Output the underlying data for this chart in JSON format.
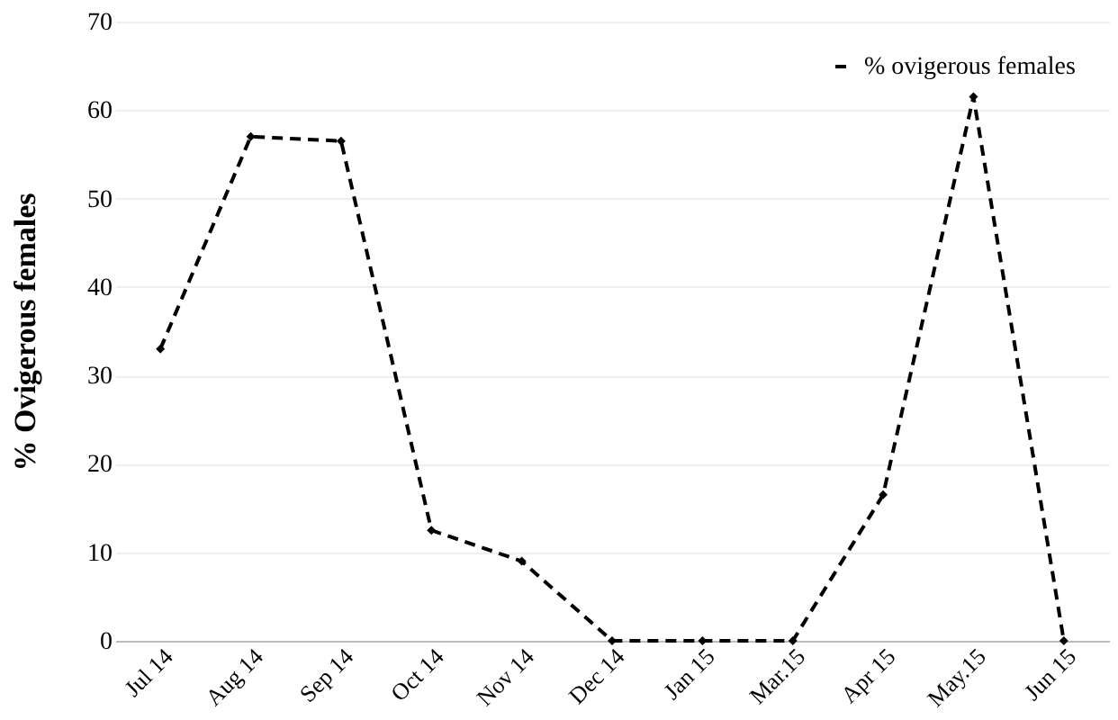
{
  "chart_data": {
    "type": "line",
    "ylabel": "% Ovigerous females",
    "categories": [
      "Jul 14",
      "Aug 14",
      "Sep 14",
      "Oct 14",
      "Nov 14",
      "Dec 14",
      "Jan 15",
      "Mar.15",
      "Apr 15",
      "May.15",
      "Jun 15"
    ],
    "series": [
      {
        "name": "% ovigerous females",
        "color": "#000000",
        "values": [
          33,
          57,
          56.5,
          12.5,
          9,
          0,
          0,
          0,
          16.5,
          61.5,
          0
        ]
      }
    ],
    "ylim": [
      0,
      70
    ],
    "yticks": [
      0,
      10,
      20,
      30,
      40,
      50,
      60,
      70
    ],
    "grid": "y",
    "legend": "top right",
    "marker": "diamond",
    "line_style": "dashed"
  }
}
